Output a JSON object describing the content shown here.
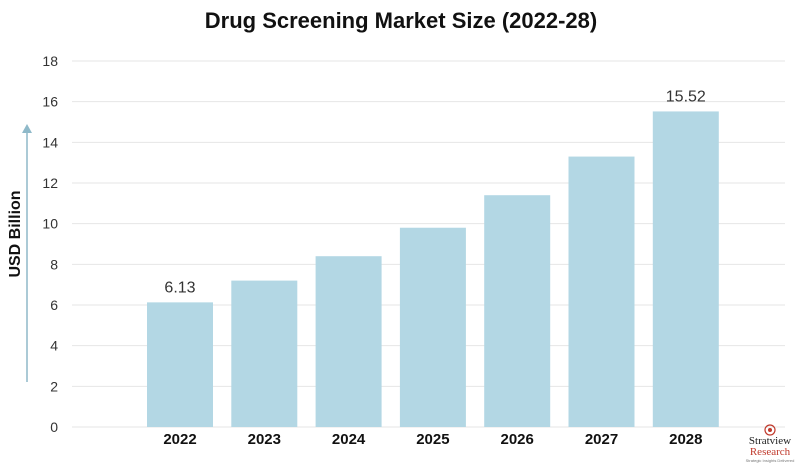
{
  "chart_data": {
    "type": "bar",
    "title": "Drug Screening Market Size (2022-28)",
    "ylabel": "USD Billion",
    "xlabel": "",
    "categories": [
      "2022",
      "2023",
      "2024",
      "2025",
      "2026",
      "2027",
      "2028"
    ],
    "values": [
      6.13,
      7.2,
      8.4,
      9.8,
      11.4,
      13.3,
      15.52
    ],
    "data_labels": [
      {
        "index": 0,
        "text": "6.13"
      },
      {
        "index": 6,
        "text": "15.52"
      }
    ],
    "ylim": [
      0,
      18
    ],
    "yticks": [
      0,
      2,
      4,
      6,
      8,
      10,
      12,
      14,
      16,
      18
    ],
    "grid": true,
    "legend": "none",
    "bar_color": "#b3d7e4",
    "grid_color": "#e6e6e6",
    "axis_arrow_color": "#8fb9c9"
  },
  "logo": {
    "brand": "Stratview",
    "brand_suffix": "Research",
    "tagline": "Strategic Insights Delivered",
    "colors": {
      "primary": "#222222",
      "accent": "#c0392b"
    }
  }
}
